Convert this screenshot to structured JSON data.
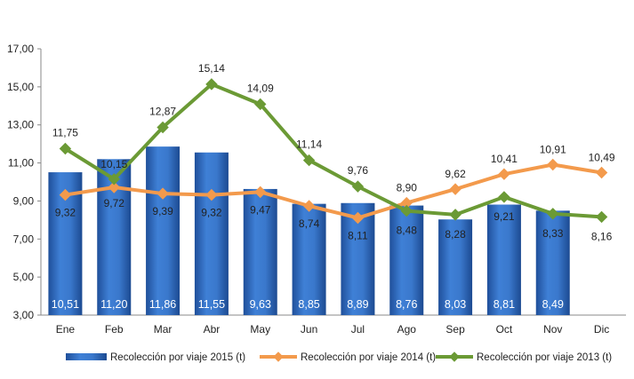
{
  "chart_data": {
    "type": "bar",
    "categories": [
      "Ene",
      "Feb",
      "Mar",
      "Abr",
      "May",
      "Jun",
      "Jul",
      "Ago",
      "Sep",
      "Oct",
      "Nov",
      "Dic"
    ],
    "ylim": [
      3,
      17
    ],
    "yticks": [
      "3,00",
      "5,00",
      "7,00",
      "9,00",
      "11,00",
      "13,00",
      "15,00",
      "17,00"
    ],
    "grid": false,
    "legend_position": "bottom",
    "series": [
      {
        "name": "Recolección por viaje 2015 (t)",
        "type": "bar",
        "color": "#2f6fc4",
        "values": [
          10.51,
          11.2,
          11.86,
          11.55,
          9.63,
          8.85,
          8.89,
          8.76,
          8.03,
          8.81,
          8.49,
          null
        ],
        "labels": [
          "10,51",
          "11,20",
          "11,86",
          "11,55",
          "9,63",
          "8,85",
          "8,89",
          "8,76",
          "8,03",
          "8,81",
          "8,49",
          ""
        ]
      },
      {
        "name": "Recolección por viaje 2014 (t)",
        "type": "line",
        "color": "#f39a4c",
        "values": [
          9.32,
          9.72,
          9.39,
          9.32,
          9.47,
          8.74,
          8.11,
          8.9,
          9.62,
          10.41,
          10.91,
          10.49
        ],
        "labels": [
          "9,32",
          "9,72",
          "9,39",
          "9,32",
          "9,47",
          "8,74",
          "8,11",
          "8,90",
          "9,62",
          "10,41",
          "10,91",
          "10,49"
        ]
      },
      {
        "name": "Recolección por viaje 2013 (t)",
        "type": "line",
        "color": "#6b9a35",
        "values": [
          11.75,
          10.15,
          12.87,
          15.14,
          14.09,
          11.14,
          9.76,
          8.48,
          8.28,
          9.21,
          8.33,
          8.16
        ],
        "labels": [
          "11,75",
          "10,15",
          "12,87",
          "15,14",
          "14,09",
          "11,14",
          "9,76",
          "8,48",
          "8,28",
          "9,21",
          "8,33",
          "8,16"
        ]
      }
    ]
  }
}
